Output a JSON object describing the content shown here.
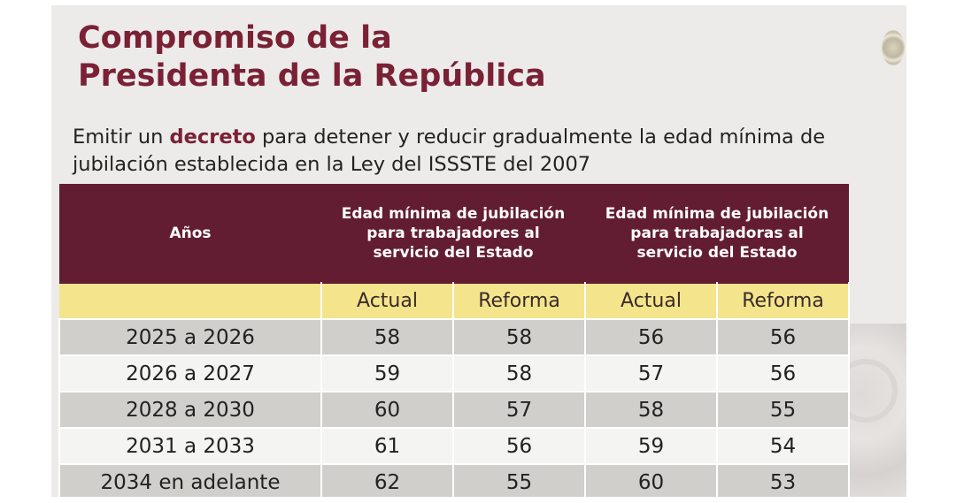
{
  "title": {
    "line1": "Compromiso de la",
    "line2": "Presidenta de la República"
  },
  "subtitle": {
    "before": "Emitir un ",
    "highlight": "decreto",
    "after": " para detener y reducir gradualmente la edad mínima de jubilación establecida en la Ley del ISSSTE del 2007"
  },
  "table": {
    "header": {
      "col1": "Años",
      "group1": "Edad mínima de jubilación para trabajadores al servicio del Estado",
      "group2": "Edad mínima de jubilación para trabajadoras al servicio del Estado"
    },
    "subheaders": [
      "Actual",
      "Reforma",
      "Actual",
      "Reforma"
    ],
    "rows": [
      {
        "years": "2025 a 2026",
        "v1": "58",
        "v2": "58",
        "v3": "56",
        "v4": "56"
      },
      {
        "years": "2026 a 2027",
        "v1": "59",
        "v2": "58",
        "v3": "57",
        "v4": "56"
      },
      {
        "years": "2028 a 2030",
        "v1": "60",
        "v2": "57",
        "v3": "58",
        "v4": "55"
      },
      {
        "years": "2031 a 2033",
        "v1": "61",
        "v2": "56",
        "v3": "59",
        "v4": "54"
      },
      {
        "years": "2034 en adelante",
        "v1": "62",
        "v2": "55",
        "v3": "60",
        "v4": "53"
      }
    ]
  },
  "colors": {
    "title": "#7a2135",
    "header_bg": "#631d33",
    "subheader_bg": "#f4e58c",
    "row_gray": "#d0cfcb",
    "row_white": "#f4f4f2"
  }
}
